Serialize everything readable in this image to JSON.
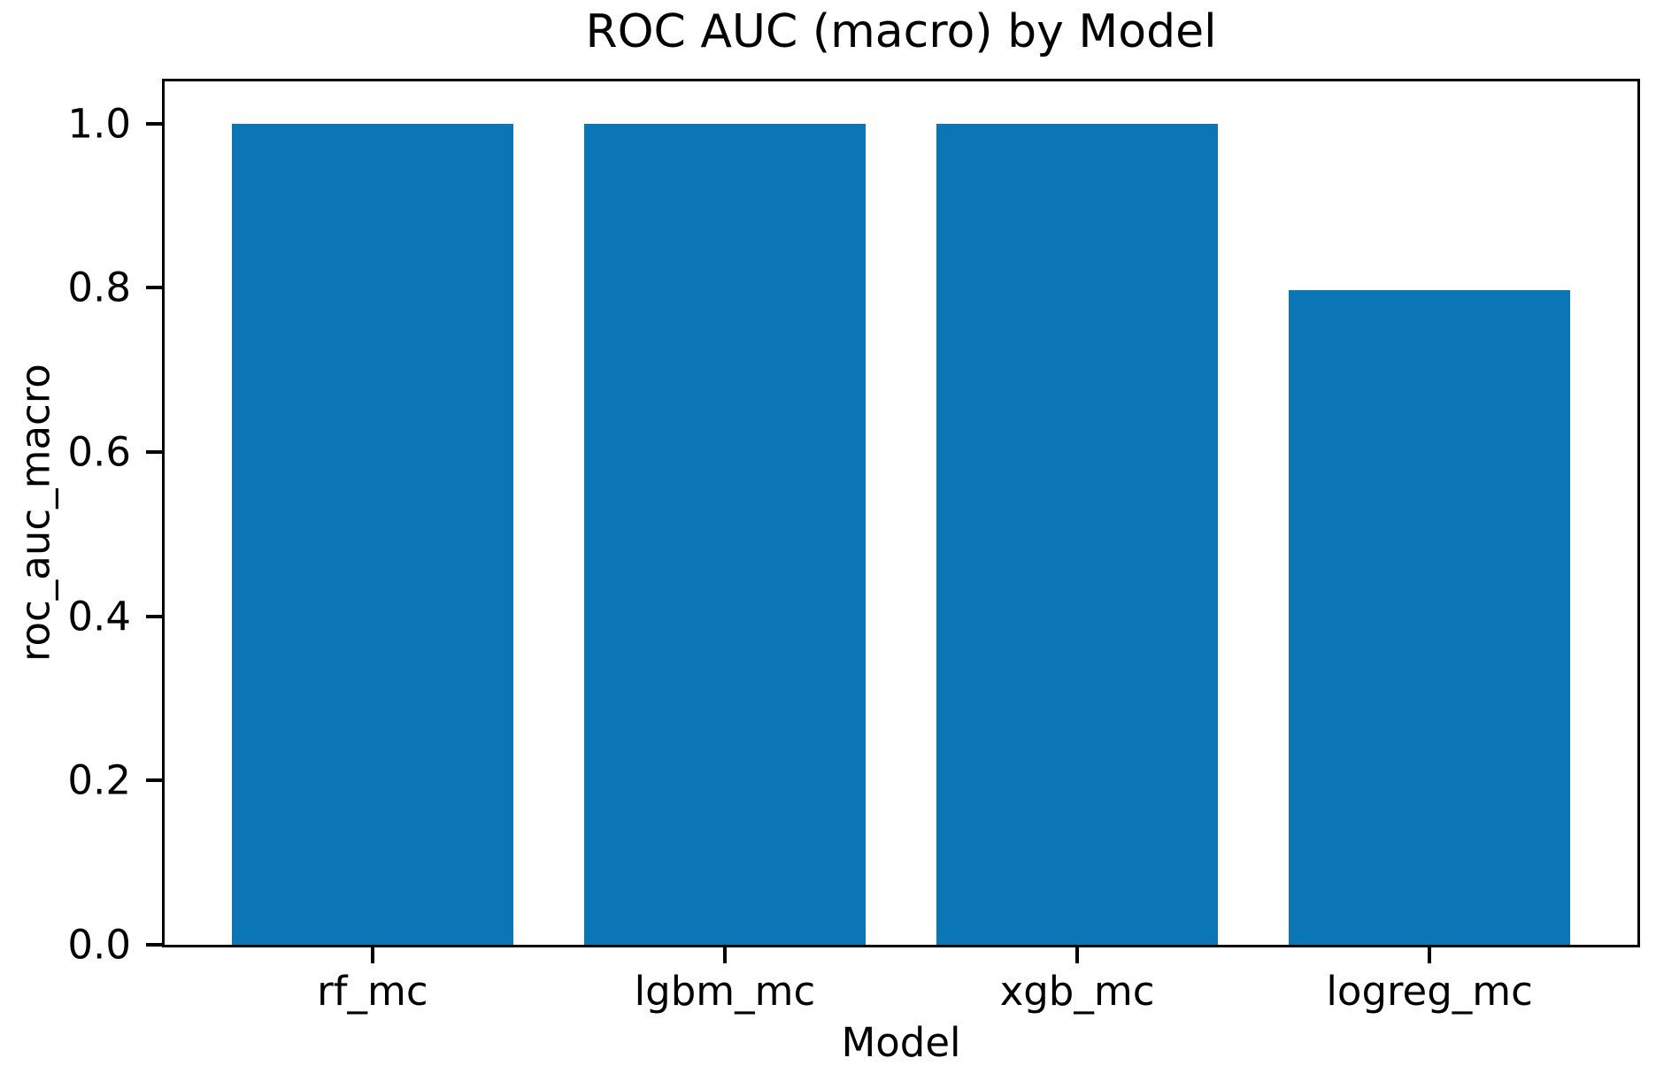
{
  "chart_data": {
    "type": "bar",
    "title": "ROC AUC (macro) by Model",
    "xlabel": "Model",
    "ylabel": "roc_auc_macro",
    "categories": [
      "rf_mc",
      "lgbm_mc",
      "xgb_mc",
      "logreg_mc"
    ],
    "values": [
      1.0,
      1.0,
      1.0,
      0.797
    ],
    "bar_color": "#0b76b5",
    "x_positions": [
      0,
      1,
      2,
      3
    ],
    "bar_width": 0.8,
    "xlim": [
      -0.59,
      3.59
    ],
    "ylim": [
      0,
      1.0514
    ],
    "yticks": [
      0.0,
      0.2,
      0.4,
      0.6,
      0.8,
      1.0
    ],
    "ytick_labels": [
      "0.0",
      "0.2",
      "0.4",
      "0.6",
      "0.8",
      "1.0"
    ],
    "grid": false,
    "legend": null,
    "spine_color": "#000000",
    "text_color": "#000000",
    "background_color": "#ffffff"
  }
}
